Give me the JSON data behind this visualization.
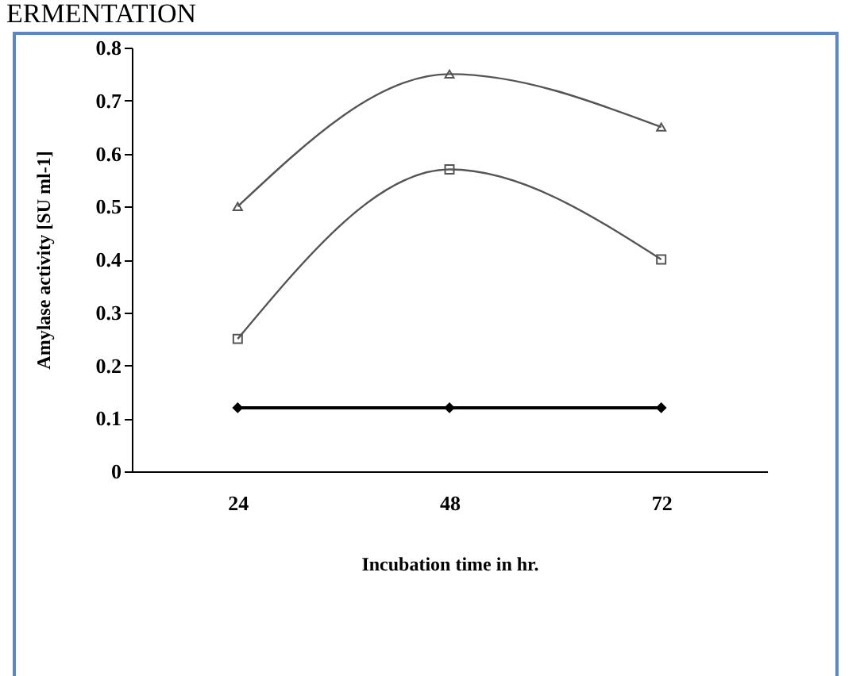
{
  "chart_data": {
    "type": "line",
    "title": "ERMENTATION",
    "xlabel": "Incubation time in hr.",
    "ylabel": "Amylase activity [SU ml-1]",
    "categories": [
      "24",
      "48",
      "72"
    ],
    "series": [
      {
        "color": "#555555",
        "marker": "triangle",
        "values": [
          0.5,
          0.75,
          0.65
        ]
      },
      {
        "color": "#555555",
        "marker": "square",
        "values": [
          0.25,
          0.57,
          0.4
        ]
      },
      {
        "color": "#000000",
        "marker": "diamond",
        "values": [
          0.12,
          0.12,
          0.12
        ]
      }
    ],
    "ylim": [
      0,
      0.8
    ],
    "yticks": [
      0,
      0.1,
      0.2,
      0.3,
      0.4,
      0.5,
      0.6,
      0.7,
      0.8
    ],
    "grid": false
  }
}
